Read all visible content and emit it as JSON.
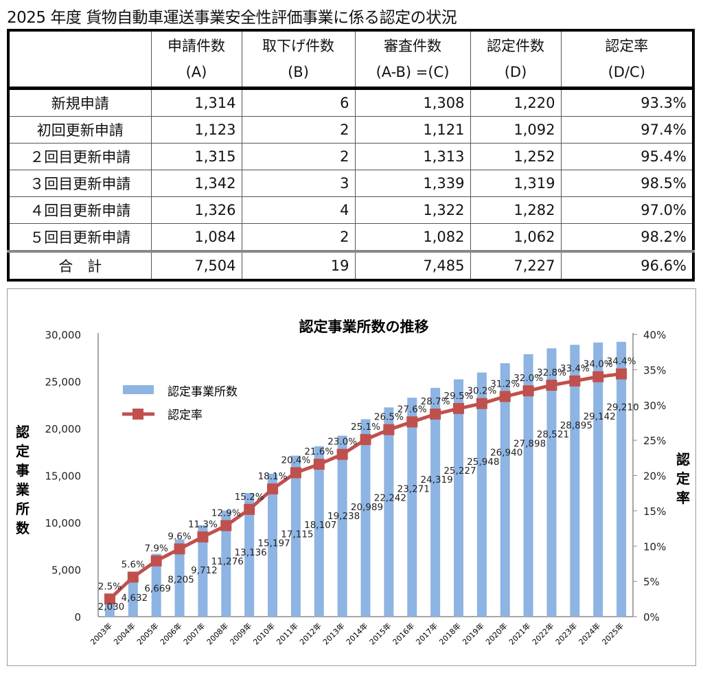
{
  "title": "2025 年度 貨物自動車運送事業安全性評価事業に係る認定の状況",
  "table": {
    "headers": [
      {
        "line1": "",
        "line2": ""
      },
      {
        "line1": "申請件数",
        "line2": "(A)"
      },
      {
        "line1": "取下げ件数",
        "line2": "(B)"
      },
      {
        "line1": "審査件数",
        "line2": "(A-B) =(C)"
      },
      {
        "line1": "認定件数",
        "line2": "(D)"
      },
      {
        "line1": "認定率",
        "line2": "(D/C)"
      }
    ],
    "rows": [
      [
        "新規申請",
        "1,314",
        "6",
        "1,308",
        "1,220",
        "93.3%"
      ],
      [
        "初回更新申請",
        "1,123",
        "2",
        "1,121",
        "1,092",
        "97.4%"
      ],
      [
        "２回目更新申請",
        "1,315",
        "2",
        "1,313",
        "1,252",
        "95.4%"
      ],
      [
        "３回目更新申請",
        "1,342",
        "3",
        "1,339",
        "1,319",
        "98.5%"
      ],
      [
        "４回目更新申請",
        "1,326",
        "4",
        "1,322",
        "1,282",
        "97.0%"
      ],
      [
        "５回目更新申請",
        "1,084",
        "2",
        "1,082",
        "1,062",
        "98.2%"
      ]
    ],
    "total": [
      "合　計",
      "7,504",
      "19",
      "7,485",
      "7,227",
      "96.6%"
    ]
  },
  "chart_data": {
    "type": "bar+line",
    "title": "認定事業所数の推移",
    "categories": [
      "2003年",
      "2004年",
      "2005年",
      "2006年",
      "2007年",
      "2008年",
      "2009年",
      "2010年",
      "2011年",
      "2012年",
      "2013年",
      "2014年",
      "2015年",
      "2016年",
      "2017年",
      "2018年",
      "2019年",
      "2020年",
      "2021年",
      "2022年",
      "2023年",
      "2024年",
      "2025年"
    ],
    "series": [
      {
        "name": "認定事業所数",
        "type": "bar",
        "axis": "left",
        "color": "#8db4e2",
        "values": [
          2030,
          4632,
          6669,
          8205,
          9712,
          11276,
          13136,
          15197,
          17115,
          18107,
          19238,
          20989,
          22242,
          23271,
          24319,
          25227,
          25948,
          26940,
          27898,
          28521,
          28895,
          29142,
          29210
        ],
        "labels": [
          "2,030",
          "4,632",
          "6,669",
          "8,205",
          "9,712",
          "11,276",
          "13,136",
          "15,197",
          "17,115",
          "18,107",
          "19,238",
          "20,989",
          "22,242",
          "23,271",
          "24,319",
          "25,227",
          "25,948",
          "26,940",
          "27,898",
          "28,521",
          "28,895",
          "29,142",
          "29,210"
        ]
      },
      {
        "name": "認定率",
        "type": "line",
        "axis": "right",
        "color": "#c0504d",
        "values": [
          2.5,
          5.6,
          7.9,
          9.6,
          11.3,
          12.9,
          15.2,
          18.1,
          20.4,
          21.6,
          23.0,
          25.1,
          26.5,
          27.6,
          28.7,
          29.5,
          30.2,
          31.2,
          32.0,
          32.8,
          33.4,
          34.0,
          34.4
        ],
        "labels": [
          "2.5%",
          "5.6%",
          "7.9%",
          "9.6%",
          "11.3%",
          "12.9%",
          "15.2%",
          "18.1%",
          "20.4%",
          "21.6%",
          "23.0%",
          "25.1%",
          "26.5%",
          "27.6%",
          "28.7%",
          "29.5%",
          "30.2%",
          "31.2%",
          "32.0%",
          "32.8%",
          "33.4%",
          "34.0%",
          "34.4%"
        ]
      }
    ],
    "ylabel": "認定事業所数",
    "y2label": "認定率",
    "ylim": [
      0,
      30000
    ],
    "y2lim": [
      0,
      40
    ],
    "yticks": [
      "0",
      "5,000",
      "10,000",
      "15,000",
      "20,000",
      "25,000",
      "30,000"
    ],
    "y2ticks": [
      "0%",
      "5%",
      "10%",
      "15%",
      "20%",
      "25%",
      "30%",
      "35%",
      "40%"
    ],
    "legend": [
      "認定事業所数",
      "認定率"
    ],
    "legend_position": "top-left",
    "grid": false
  }
}
